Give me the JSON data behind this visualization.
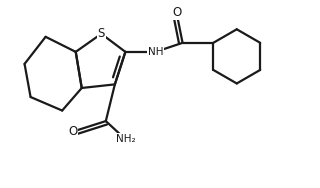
{
  "bg_color": "#ffffff",
  "line_color": "#1a1a1a",
  "line_width": 1.6,
  "figsize": [
    3.2,
    1.88
  ],
  "dpi": 100,
  "xlim": [
    0,
    10
  ],
  "ylim": [
    0,
    6.2
  ],
  "S_label": "S",
  "NH_label": "NH",
  "O_label1": "O",
  "O_label2": "O",
  "NH2_label": "NH₂"
}
